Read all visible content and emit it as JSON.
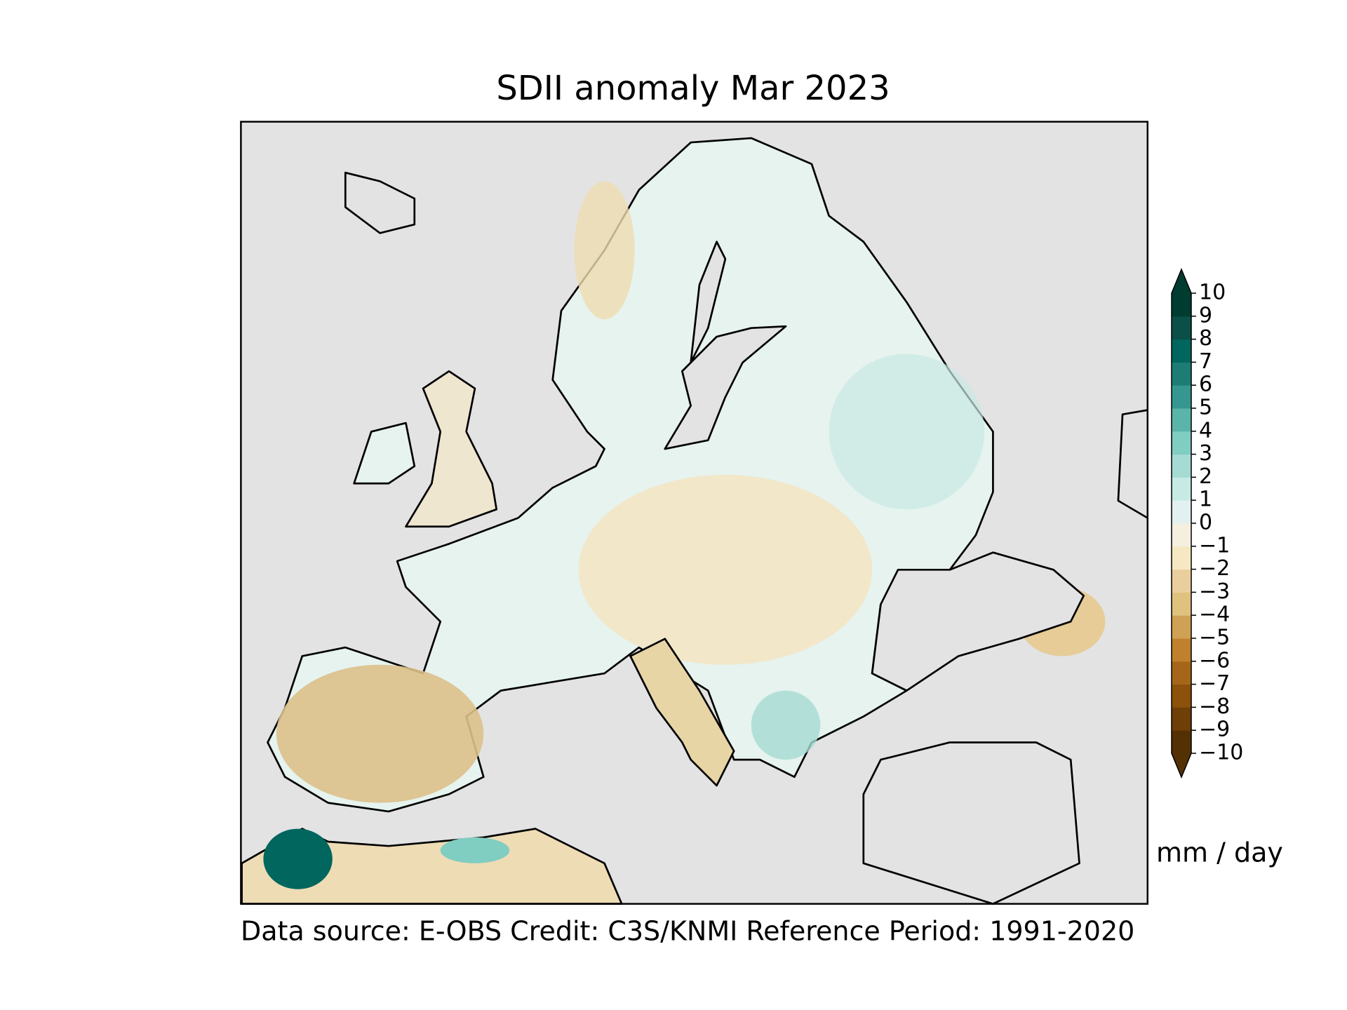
{
  "chart_data": {
    "type": "map",
    "title": "SDII anomaly Mar 2023",
    "footnote": "Data source: E-OBS  Credit: C3S/KNMI  Reference Period: 1991-2020",
    "colorbar": {
      "label": "mm / day",
      "lim": [
        -10,
        10
      ],
      "extend": "both",
      "ticks": [
        {
          "value": -10,
          "label": "−10"
        },
        {
          "value": -9,
          "label": "−9"
        },
        {
          "value": -8,
          "label": "−8"
        },
        {
          "value": -7,
          "label": "−7"
        },
        {
          "value": -6,
          "label": "−6"
        },
        {
          "value": -5,
          "label": "−5"
        },
        {
          "value": -4,
          "label": "−4"
        },
        {
          "value": -3,
          "label": "−3"
        },
        {
          "value": -2,
          "label": "−2"
        },
        {
          "value": -1,
          "label": "−1"
        },
        0,
        1,
        2,
        3,
        4,
        5,
        6,
        7,
        8,
        9,
        10
      ],
      "colors": [
        "#543005",
        "#6f3f08",
        "#8c510a",
        "#a6661a",
        "#bf812d",
        "#cfa155",
        "#dfc27d",
        "#eacf9e",
        "#f6e8c3",
        "#f5efe0",
        "#e2f1ef",
        "#c7eae5",
        "#a5dbd2",
        "#80cdc1",
        "#5bb4a9",
        "#35978f",
        "#1d7d75",
        "#01665e",
        "#0a5048",
        "#003c30"
      ]
    }
  }
}
